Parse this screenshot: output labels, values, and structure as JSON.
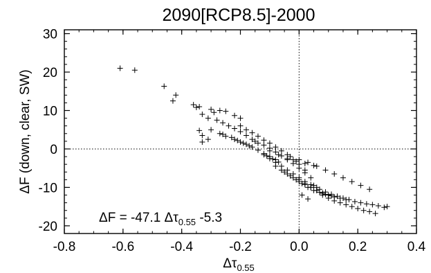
{
  "chart_data": {
    "type": "scatter",
    "title": "2090[RCP8.5]-2000",
    "xlabel": {
      "base": "Δτ",
      "sub": "0.55"
    },
    "ylabel": "ΔF (down, clear, SW)",
    "xlim": [
      -0.8,
      0.4
    ],
    "ylim": [
      -22,
      31
    ],
    "xticks": [
      -0.8,
      -0.6,
      -0.4,
      -0.2,
      0.0,
      0.2,
      0.4
    ],
    "xtick_labels": [
      "-0.8",
      "-0.6",
      "-0.4",
      "-0.2",
      "0.0",
      "0.2",
      "0.4"
    ],
    "yticks": [
      -20,
      -10,
      0,
      10,
      20,
      30
    ],
    "ytick_labels": [
      "-20",
      "-10",
      "0",
      "10",
      "20",
      "30"
    ],
    "reference_lines": {
      "x": 0.0,
      "y": 0.0,
      "style": "dotted"
    },
    "marker": "+",
    "annotation": {
      "pre": "ΔF = -47.1 Δτ",
      "sub": "0.55",
      "post": " -5.3"
    },
    "fit": {
      "slope": -47.1,
      "intercept": -5.3
    },
    "x": [
      -0.61,
      -0.56,
      -0.46,
      -0.42,
      -0.43,
      -0.36,
      -0.35,
      -0.34,
      -0.33,
      -0.33,
      -0.31,
      -0.34,
      -0.3,
      -0.29,
      -0.27,
      -0.25,
      -0.22,
      -0.2,
      -0.33,
      -0.31,
      -0.28,
      -0.26,
      -0.24,
      -0.22,
      -0.2,
      -0.18,
      -0.16,
      -0.14,
      -0.3,
      -0.27,
      -0.25,
      -0.22,
      -0.2,
      -0.18,
      -0.16,
      -0.14,
      -0.12,
      -0.1,
      -0.08,
      -0.2,
      -0.18,
      -0.16,
      -0.14,
      -0.12,
      -0.1,
      -0.08,
      -0.06,
      -0.04,
      -0.02,
      0.0,
      0.02,
      -0.15,
      -0.12,
      -0.1,
      -0.08,
      -0.06,
      -0.04,
      -0.02,
      0.0,
      0.02,
      0.04,
      -0.12,
      -0.1,
      -0.08,
      -0.06,
      -0.04,
      -0.02,
      0.0,
      0.02,
      0.04,
      0.06,
      -0.08,
      -0.06,
      -0.04,
      -0.02,
      0.0,
      0.02,
      0.04,
      0.06,
      0.08,
      -0.05,
      -0.03,
      -0.01,
      0.01,
      0.03,
      0.05,
      0.07,
      0.09,
      0.11,
      0.0,
      0.02,
      0.04,
      0.06,
      0.08,
      0.1,
      0.12,
      0.14,
      0.16,
      0.05,
      0.07,
      0.09,
      0.11,
      0.13,
      0.15,
      0.17,
      0.19,
      0.21,
      0.23,
      0.25,
      0.27,
      0.29,
      0.3,
      0.08,
      0.1,
      0.12,
      0.14,
      0.16,
      0.18,
      0.2,
      0.22,
      0.24,
      0.26,
      -0.1,
      -0.07,
      -0.04,
      -0.01,
      0.02,
      0.05,
      -0.03,
      0.0,
      0.03,
      0.06,
      0.09,
      0.12,
      0.15,
      0.18,
      0.21,
      0.24,
      -0.26,
      -0.23,
      -0.21,
      -0.19,
      -0.17,
      -0.11,
      -0.09,
      -0.07,
      0.01,
      0.03
    ],
    "y": [
      21.0,
      20.5,
      16.3,
      14.0,
      12.5,
      11.5,
      10.8,
      4.8,
      3.5,
      1.8,
      2.5,
      11.0,
      10.3,
      9.5,
      10.0,
      9.8,
      8.7,
      8.0,
      9.0,
      8.0,
      7.5,
      6.8,
      6.0,
      5.3,
      4.5,
      3.5,
      2.5,
      1.5,
      5.0,
      4.0,
      3.3,
      2.5,
      1.8,
      1.2,
      0.5,
      -0.3,
      -1.2,
      -2.0,
      -2.8,
      6.0,
      5.0,
      4.2,
      3.3,
      2.3,
      1.5,
      0.5,
      -0.5,
      -1.5,
      -2.8,
      -4.0,
      -5.5,
      2.0,
      1.0,
      0.2,
      -0.8,
      -1.8,
      -2.8,
      -3.8,
      -5.0,
      -6.2,
      -7.5,
      -1.5,
      -2.5,
      -3.5,
      -4.5,
      -5.5,
      -6.5,
      -7.5,
      -8.5,
      -9.3,
      -10.0,
      -4.5,
      -5.5,
      -6.5,
      -7.5,
      -8.5,
      -9.3,
      -10.0,
      -10.8,
      -11.5,
      -6.0,
      -7.0,
      -8.0,
      -9.0,
      -10.0,
      -10.8,
      -11.3,
      -11.8,
      -12.2,
      -8.0,
      -9.0,
      -10.0,
      -10.8,
      -11.5,
      -12.0,
      -12.5,
      -12.8,
      -13.2,
      -9.5,
      -10.5,
      -11.2,
      -11.8,
      -12.3,
      -12.8,
      -13.2,
      -13.7,
      -14.0,
      -14.3,
      -14.5,
      -14.8,
      -15.2,
      -15.0,
      -12.0,
      -12.8,
      -13.5,
      -14.0,
      -14.5,
      -15.0,
      -15.5,
      -16.0,
      -16.3,
      -16.8,
      -0.5,
      -1.5,
      -2.5,
      -3.2,
      -3.8,
      -4.3,
      -2.0,
      -2.8,
      -3.5,
      -4.5,
      -5.5,
      -6.5,
      -7.5,
      -8.5,
      -9.5,
      -10.5,
      3.8,
      3.0,
      2.2,
      1.5,
      0.8,
      -1.8,
      -2.6,
      -3.4,
      -12.0,
      -13.0
    ]
  }
}
